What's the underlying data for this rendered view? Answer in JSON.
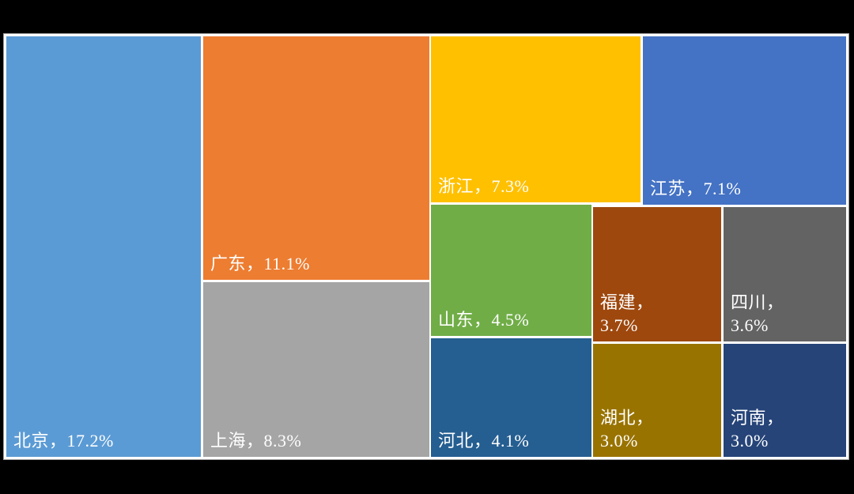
{
  "page": {
    "background_color": "#000000",
    "chart_canvas_color": "#FFFFFF",
    "cell_gap_color": "#FFFFFF",
    "outer_border_color": "#9A9A9A",
    "label_text_color": "#FFFFFF"
  },
  "chart_data": {
    "type": "treemap",
    "title": "",
    "unit": "%",
    "legend": "none",
    "gridlines": false,
    "categories": [
      "北京",
      "广东",
      "上海",
      "浙江",
      "江苏",
      "山东",
      "河北",
      "福建",
      "四川",
      "湖北",
      "河南"
    ],
    "values": [
      17.2,
      11.1,
      8.3,
      7.3,
      7.1,
      4.5,
      4.1,
      3.7,
      3.6,
      3.0,
      3.0
    ],
    "data_labels": [
      "北京，17.2%",
      "广东，11.1%",
      "上海，8.3%",
      "浙江，7.3%",
      "江苏，7.1%",
      "山东，4.5%",
      "河北，4.1%",
      "福建，3.7%",
      "四川，3.6%",
      "湖北，3.0%",
      "河南，3.0%"
    ],
    "colors": [
      "#5B9BD5",
      "#ED7D31",
      "#A5A5A5",
      "#FFC000",
      "#4472C4",
      "#70AD47",
      "#255E91",
      "#9E480E",
      "#636363",
      "#997300",
      "#264478"
    ]
  },
  "cells": [
    {
      "region": "北京",
      "value": 17.2,
      "label": "北京，17.2%",
      "color": "#5B9BD5"
    },
    {
      "region": "广东",
      "value": 11.1,
      "label": "广东，11.1%",
      "color": "#ED7D31"
    },
    {
      "region": "上海",
      "value": 8.3,
      "label": "上海，8.3%",
      "color": "#A5A5A5"
    },
    {
      "region": "浙江",
      "value": 7.3,
      "label": "浙江，7.3%",
      "color": "#FFC000"
    },
    {
      "region": "江苏",
      "value": 7.1,
      "label": "江苏，7.1%",
      "color": "#4472C4"
    },
    {
      "region": "山东",
      "value": 4.5,
      "label": "山东，4.5%",
      "color": "#70AD47"
    },
    {
      "region": "福建",
      "value": 3.7,
      "label": "福建，\n3.7%",
      "color": "#9E480E"
    },
    {
      "region": "四川",
      "value": 3.6,
      "label": "四川，\n3.6%",
      "color": "#636363"
    },
    {
      "region": "河北",
      "value": 4.1,
      "label": "河北，4.1%",
      "color": "#255E91"
    },
    {
      "region": "湖北",
      "value": 3.0,
      "label": "湖北，\n3.0%",
      "color": "#997300"
    },
    {
      "region": "河南",
      "value": 3.0,
      "label": "河南，\n3.0%",
      "color": "#264478"
    }
  ]
}
